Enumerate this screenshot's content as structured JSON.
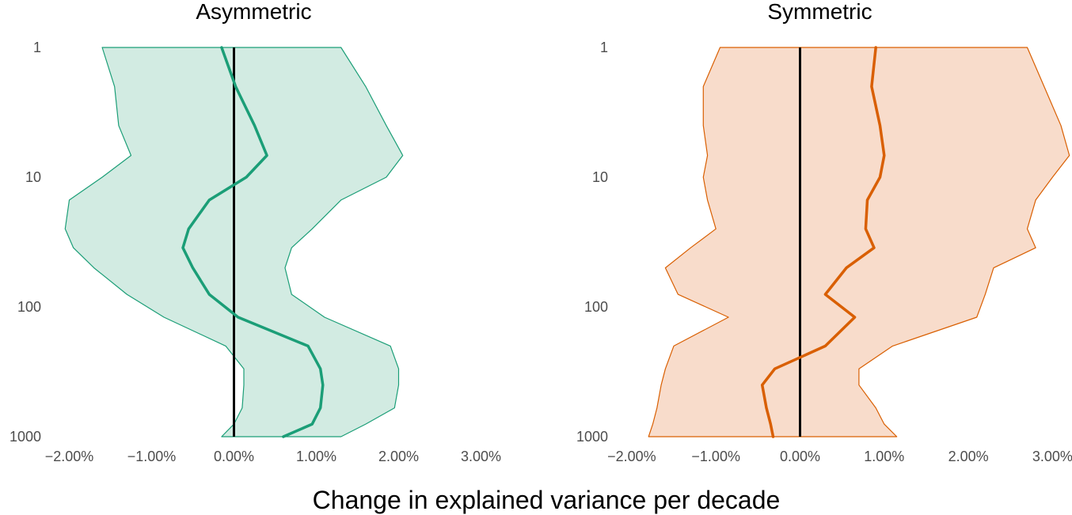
{
  "xlabel": "Change in explained variance per decade",
  "chart_data": [
    {
      "type": "area",
      "title": "Asymmetric",
      "xlabel": "Change in explained variance per decade",
      "ylabel": "",
      "y_scale": "log",
      "ylim": [
        1,
        1000
      ],
      "xlim": [
        -2.3,
        3.4
      ],
      "x_ticks": [
        -2,
        -1,
        0,
        1,
        2,
        3
      ],
      "x_tick_labels": [
        "−2.00%",
        "−1.00%",
        "0.00%",
        "1.00%",
        "2.00%",
        "3.00%"
      ],
      "y_ticks": [
        1,
        10,
        100,
        1000
      ],
      "y_tick_labels": [
        "1",
        "10",
        "100",
        "1000"
      ],
      "reference_line_x": 0,
      "colors": {
        "line": "#1b9e77",
        "band_fill": "#d2ebe2",
        "band_edge": "#1b9e77",
        "reference": "#000000"
      },
      "y": [
        1,
        2,
        4,
        6.8,
        10,
        15,
        25,
        35,
        50,
        80,
        120,
        200,
        300,
        400,
        600,
        800,
        1000
      ],
      "line": [
        -0.15,
        0.02,
        0.25,
        0.4,
        0.15,
        -0.3,
        -0.55,
        -0.62,
        -0.5,
        -0.3,
        0.05,
        0.9,
        1.05,
        1.08,
        1.05,
        0.95,
        0.6
      ],
      "lower": [
        -1.6,
        -1.45,
        -1.4,
        -1.25,
        -1.6,
        -2.0,
        -2.05,
        -1.95,
        -1.7,
        -1.3,
        -0.85,
        -0.1,
        0.12,
        0.12,
        0.1,
        0.0,
        -0.15
      ],
      "upper": [
        1.3,
        1.6,
        1.85,
        2.05,
        1.85,
        1.3,
        0.95,
        0.7,
        0.62,
        0.7,
        1.1,
        1.9,
        2.0,
        2.0,
        1.95,
        1.6,
        1.3
      ]
    },
    {
      "type": "area",
      "title": "Symmetric",
      "xlabel": "Change in explained variance per decade",
      "ylabel": "",
      "y_scale": "log",
      "ylim": [
        1,
        1000
      ],
      "xlim": [
        -2.3,
        3.4
      ],
      "x_ticks": [
        -2,
        -1,
        0,
        1,
        2,
        3
      ],
      "x_tick_labels": [
        "−2.00%",
        "−1.00%",
        "0.00%",
        "1.00%",
        "2.00%",
        "3.00%"
      ],
      "y_ticks": [
        1,
        10,
        100,
        1000
      ],
      "y_tick_labels": [
        "1",
        "10",
        "100",
        "1000"
      ],
      "reference_line_x": 0,
      "colors": {
        "line": "#d95f02",
        "band_fill": "#f8dccb",
        "band_edge": "#d95f02",
        "reference": "#000000"
      },
      "y": [
        1,
        2,
        4,
        6.8,
        10,
        15,
        25,
        35,
        50,
        80,
        120,
        200,
        300,
        400,
        600,
        800,
        1000
      ],
      "line": [
        0.9,
        0.85,
        0.95,
        1.0,
        0.95,
        0.8,
        0.78,
        0.88,
        0.55,
        0.3,
        0.65,
        0.3,
        -0.3,
        -0.45,
        -0.4,
        -0.35,
        -0.32
      ],
      "lower": [
        -0.95,
        -1.15,
        -1.15,
        -1.1,
        -1.15,
        -1.1,
        -1.0,
        -1.3,
        -1.6,
        -1.45,
        -0.85,
        -1.5,
        -1.6,
        -1.65,
        -1.7,
        -1.75,
        -1.8
      ],
      "upper": [
        2.7,
        2.9,
        3.1,
        3.2,
        3.0,
        2.8,
        2.7,
        2.8,
        2.3,
        2.2,
        2.1,
        1.1,
        0.7,
        0.7,
        0.9,
        1.0,
        1.15
      ]
    }
  ]
}
